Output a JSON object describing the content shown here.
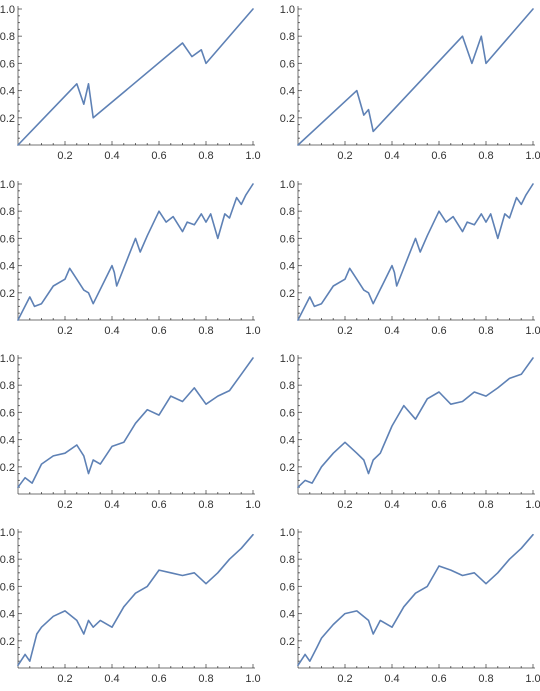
{
  "colors": {
    "series": "#5e81b5",
    "axes": "#666666",
    "text": "#333333"
  },
  "chart_data": [
    {
      "type": "line",
      "title": "",
      "xlabel": "",
      "ylabel": "",
      "xlim": [
        0,
        1
      ],
      "ylim": [
        0,
        1
      ],
      "xticks": [
        "0.2",
        "0.4",
        "0.6",
        "0.8",
        "1.0"
      ],
      "yticks": [
        "0.2",
        "0.4",
        "0.6",
        "0.8",
        "1.0"
      ],
      "grid": false,
      "series": [
        {
          "x": [
            0,
            0.25,
            0.28,
            0.3,
            0.32,
            0.7,
            0.74,
            0.78,
            0.8,
            1.0
          ],
          "y": [
            0,
            0.45,
            0.3,
            0.45,
            0.2,
            0.75,
            0.65,
            0.7,
            0.6,
            1.0
          ]
        }
      ]
    },
    {
      "type": "line",
      "title": "",
      "xlabel": "",
      "ylabel": "",
      "xlim": [
        0,
        1
      ],
      "ylim": [
        0,
        1
      ],
      "xticks": [
        "0.2",
        "0.4",
        "0.6",
        "0.8",
        "1.0"
      ],
      "yticks": [
        "0.2",
        "0.4",
        "0.6",
        "0.8",
        "1.0"
      ],
      "grid": false,
      "series": [
        {
          "x": [
            0,
            0.25,
            0.28,
            0.3,
            0.32,
            0.7,
            0.74,
            0.78,
            0.8,
            1.0
          ],
          "y": [
            0,
            0.4,
            0.22,
            0.26,
            0.1,
            0.8,
            0.6,
            0.8,
            0.6,
            1.0
          ]
        }
      ]
    },
    {
      "type": "line",
      "title": "",
      "xlabel": "",
      "ylabel": "",
      "xlim": [
        0,
        1
      ],
      "ylim": [
        0,
        1
      ],
      "xticks": [
        "0.2",
        "0.4",
        "0.6",
        "0.8",
        "1.0"
      ],
      "yticks": [
        "0.2",
        "0.4",
        "0.6",
        "0.8",
        "1.0"
      ],
      "grid": false,
      "series": [
        {
          "x": [
            0,
            0.05,
            0.07,
            0.1,
            0.15,
            0.2,
            0.22,
            0.25,
            0.28,
            0.3,
            0.32,
            0.4,
            0.41,
            0.42,
            0.5,
            0.52,
            0.55,
            0.6,
            0.63,
            0.66,
            0.7,
            0.72,
            0.75,
            0.78,
            0.8,
            0.82,
            0.85,
            0.88,
            0.9,
            0.93,
            0.95,
            0.97,
            1.0
          ],
          "y": [
            0,
            0.17,
            0.1,
            0.12,
            0.25,
            0.3,
            0.38,
            0.3,
            0.22,
            0.2,
            0.12,
            0.4,
            0.35,
            0.25,
            0.6,
            0.5,
            0.62,
            0.8,
            0.72,
            0.76,
            0.65,
            0.72,
            0.7,
            0.78,
            0.72,
            0.78,
            0.6,
            0.78,
            0.75,
            0.9,
            0.85,
            0.92,
            1.0
          ]
        }
      ]
    },
    {
      "type": "line",
      "title": "",
      "xlabel": "",
      "ylabel": "",
      "xlim": [
        0,
        1
      ],
      "ylim": [
        0,
        1
      ],
      "xticks": [
        "0.2",
        "0.4",
        "0.6",
        "0.8",
        "1.0"
      ],
      "yticks": [
        "0.2",
        "0.4",
        "0.6",
        "0.8",
        "1.0"
      ],
      "grid": false,
      "series": [
        {
          "x": [
            0,
            0.05,
            0.07,
            0.1,
            0.15,
            0.2,
            0.22,
            0.25,
            0.28,
            0.3,
            0.32,
            0.4,
            0.41,
            0.42,
            0.5,
            0.52,
            0.55,
            0.6,
            0.63,
            0.66,
            0.7,
            0.72,
            0.75,
            0.78,
            0.8,
            0.82,
            0.85,
            0.88,
            0.9,
            0.93,
            0.95,
            0.97,
            1.0
          ],
          "y": [
            0,
            0.17,
            0.1,
            0.12,
            0.25,
            0.3,
            0.38,
            0.3,
            0.22,
            0.2,
            0.12,
            0.4,
            0.35,
            0.25,
            0.6,
            0.5,
            0.62,
            0.8,
            0.72,
            0.76,
            0.65,
            0.72,
            0.7,
            0.78,
            0.72,
            0.78,
            0.6,
            0.78,
            0.75,
            0.9,
            0.85,
            0.92,
            1.0
          ]
        }
      ]
    },
    {
      "type": "line",
      "title": "",
      "xlabel": "",
      "ylabel": "",
      "xlim": [
        0,
        1
      ],
      "ylim": [
        0,
        1
      ],
      "xticks": [
        "0.2",
        "0.4",
        "0.6",
        "0.8",
        "1.0"
      ],
      "yticks": [
        "0.2",
        "0.4",
        "0.6",
        "0.8",
        "1.0"
      ],
      "grid": false,
      "series": [
        {
          "x": [
            0,
            0.03,
            0.06,
            0.1,
            0.15,
            0.2,
            0.25,
            0.28,
            0.3,
            0.32,
            0.35,
            0.4,
            0.45,
            0.5,
            0.55,
            0.6,
            0.65,
            0.7,
            0.75,
            0.8,
            0.85,
            0.9,
            0.95,
            1.0
          ],
          "y": [
            0.05,
            0.12,
            0.08,
            0.22,
            0.28,
            0.3,
            0.36,
            0.28,
            0.15,
            0.25,
            0.22,
            0.35,
            0.38,
            0.52,
            0.62,
            0.58,
            0.72,
            0.68,
            0.78,
            0.66,
            0.72,
            0.76,
            0.88,
            1.0
          ]
        }
      ]
    },
    {
      "type": "line",
      "title": "",
      "xlabel": "",
      "ylabel": "",
      "xlim": [
        0,
        1
      ],
      "ylim": [
        0,
        1
      ],
      "xticks": [
        "0.2",
        "0.4",
        "0.6",
        "0.8",
        "1.0"
      ],
      "yticks": [
        "0.2",
        "0.4",
        "0.6",
        "0.8",
        "1.0"
      ],
      "grid": false,
      "series": [
        {
          "x": [
            0,
            0.03,
            0.06,
            0.1,
            0.15,
            0.2,
            0.25,
            0.28,
            0.3,
            0.32,
            0.35,
            0.4,
            0.45,
            0.5,
            0.55,
            0.6,
            0.65,
            0.7,
            0.75,
            0.8,
            0.85,
            0.9,
            0.95,
            1.0
          ],
          "y": [
            0.05,
            0.1,
            0.08,
            0.2,
            0.3,
            0.38,
            0.3,
            0.25,
            0.15,
            0.25,
            0.3,
            0.5,
            0.65,
            0.55,
            0.7,
            0.75,
            0.66,
            0.68,
            0.75,
            0.72,
            0.78,
            0.85,
            0.88,
            1.0
          ]
        }
      ]
    },
    {
      "type": "line",
      "title": "",
      "xlabel": "",
      "ylabel": "",
      "xlim": [
        0,
        1
      ],
      "ylim": [
        0,
        1
      ],
      "xticks": [
        "0.2",
        "0.4",
        "0.6",
        "0.8",
        "1.0"
      ],
      "yticks": [
        "0.2",
        "0.4",
        "0.6",
        "0.8",
        "1.0"
      ],
      "grid": false,
      "series": [
        {
          "x": [
            0,
            0.03,
            0.05,
            0.08,
            0.1,
            0.15,
            0.2,
            0.25,
            0.28,
            0.3,
            0.32,
            0.35,
            0.4,
            0.45,
            0.5,
            0.55,
            0.6,
            0.65,
            0.7,
            0.75,
            0.8,
            0.85,
            0.9,
            0.95,
            1.0
          ],
          "y": [
            0.02,
            0.1,
            0.05,
            0.25,
            0.3,
            0.38,
            0.42,
            0.35,
            0.25,
            0.35,
            0.3,
            0.35,
            0.3,
            0.45,
            0.55,
            0.6,
            0.72,
            0.7,
            0.68,
            0.7,
            0.62,
            0.7,
            0.8,
            0.88,
            0.98
          ]
        }
      ]
    },
    {
      "type": "line",
      "title": "",
      "xlabel": "",
      "ylabel": "",
      "xlim": [
        0,
        1
      ],
      "ylim": [
        0,
        1
      ],
      "xticks": [
        "0.2",
        "0.4",
        "0.6",
        "0.8",
        "1.0"
      ],
      "yticks": [
        "0.2",
        "0.4",
        "0.6",
        "0.8",
        "1.0"
      ],
      "grid": false,
      "series": [
        {
          "x": [
            0,
            0.03,
            0.05,
            0.08,
            0.1,
            0.15,
            0.2,
            0.25,
            0.3,
            0.32,
            0.35,
            0.4,
            0.45,
            0.5,
            0.55,
            0.6,
            0.65,
            0.7,
            0.75,
            0.8,
            0.85,
            0.9,
            0.95,
            1.0
          ],
          "y": [
            0.02,
            0.1,
            0.05,
            0.15,
            0.22,
            0.32,
            0.4,
            0.42,
            0.35,
            0.25,
            0.35,
            0.3,
            0.45,
            0.55,
            0.6,
            0.75,
            0.72,
            0.68,
            0.7,
            0.62,
            0.7,
            0.8,
            0.88,
            0.98
          ]
        }
      ]
    }
  ]
}
